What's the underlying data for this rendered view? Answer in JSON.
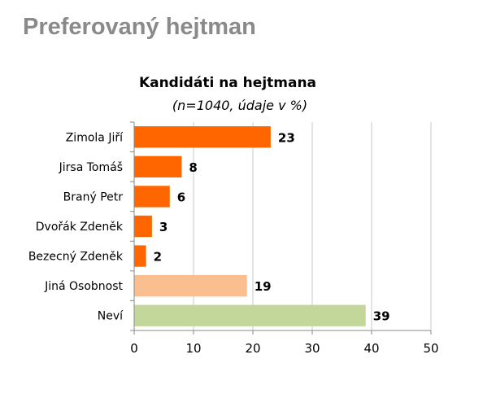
{
  "page": {
    "title": "Preferovaný hejtman"
  },
  "chart_data": {
    "type": "bar",
    "orientation": "horizontal",
    "title": "Kandidáti na hejtmana",
    "subtitle": "(n=1040, údaje v %)",
    "xlabel": "",
    "ylabel": "",
    "xlim": [
      0,
      50
    ],
    "x_ticks": [
      0,
      10,
      20,
      30,
      40,
      50
    ],
    "grid": "vertical",
    "legend": "none",
    "categories": [
      "Zimola Jiří",
      "Jirsa Tomáš",
      "Braný Petr",
      "Dvořák Zdeněk",
      "Bezecný Zdeněk",
      "Jiná Osobnost",
      "Neví"
    ],
    "values": [
      23,
      8,
      6,
      3,
      2,
      19,
      39
    ],
    "colors": [
      "#ff6600",
      "#ff6600",
      "#ff6600",
      "#ff6600",
      "#ff6600",
      "#fbbf8f",
      "#c4d79b"
    ],
    "gridline_color": "#c8c8c8",
    "axis_color": "#888888"
  }
}
